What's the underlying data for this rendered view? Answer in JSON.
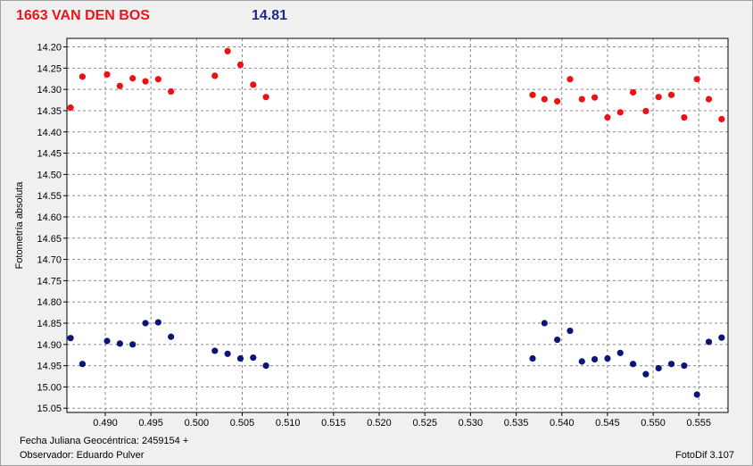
{
  "header": {
    "object": "1663 VAN DEN BOS",
    "magnitude": "14.81"
  },
  "footer": {
    "date_label": "Fecha Juliana Geocéntrica: 2459154 +",
    "observer": "Observador: Eduardo Pulver",
    "software": "FotoDif 3.107"
  },
  "colors": {
    "series_red": "#ee1111",
    "series_blue": "#0c1478",
    "title_red": "#e8141e",
    "mag_blue": "#1c2a8c"
  },
  "chart_data": {
    "type": "scatter",
    "ylabel": "Fotometría absoluta",
    "xlim": [
      0.4858,
      0.5582
    ],
    "ylim": [
      15.06,
      14.18
    ],
    "y_inverted": true,
    "grid": true,
    "x_ticks": [
      "0.490",
      "0.495",
      "0.500",
      "0.505",
      "0.510",
      "0.515",
      "0.520",
      "0.525",
      "0.530",
      "0.535",
      "0.540",
      "0.545",
      "0.550",
      "0.555"
    ],
    "y_ticks": [
      "14.20",
      "14.25",
      "14.30",
      "14.35",
      "14.40",
      "14.45",
      "14.50",
      "14.55",
      "14.60",
      "14.65",
      "14.70",
      "14.75",
      "14.80",
      "14.85",
      "14.90",
      "14.95",
      "15.00",
      "15.05"
    ],
    "series": [
      {
        "color": "#ee1111",
        "points": [
          [
            0.4862,
            14.343
          ],
          [
            0.4875,
            14.27
          ],
          [
            0.4902,
            14.265
          ],
          [
            0.4916,
            14.292
          ],
          [
            0.493,
            14.274
          ],
          [
            0.4944,
            14.281
          ],
          [
            0.4958,
            14.276
          ],
          [
            0.4972,
            14.305
          ],
          [
            0.502,
            14.268
          ],
          [
            0.5034,
            14.21
          ],
          [
            0.5048,
            14.242
          ],
          [
            0.5062,
            14.289
          ],
          [
            0.5076,
            14.318
          ],
          [
            0.5368,
            14.313
          ],
          [
            0.5381,
            14.323
          ],
          [
            0.5395,
            14.328
          ],
          [
            0.5409,
            14.276
          ],
          [
            0.5422,
            14.323
          ],
          [
            0.5436,
            14.319
          ],
          [
            0.545,
            14.366
          ],
          [
            0.5464,
            14.354
          ],
          [
            0.5478,
            14.307
          ],
          [
            0.5492,
            14.351
          ],
          [
            0.5506,
            14.318
          ],
          [
            0.552,
            14.313
          ],
          [
            0.5534,
            14.366
          ],
          [
            0.5548,
            14.276
          ],
          [
            0.5561,
            14.323
          ],
          [
            0.5575,
            14.37
          ]
        ]
      },
      {
        "color": "#0c1478",
        "points": [
          [
            0.4862,
            14.885
          ],
          [
            0.4875,
            14.946
          ],
          [
            0.4902,
            14.892
          ],
          [
            0.4916,
            14.898
          ],
          [
            0.493,
            14.9
          ],
          [
            0.4944,
            14.85
          ],
          [
            0.4958,
            14.848
          ],
          [
            0.4972,
            14.882
          ],
          [
            0.502,
            14.915
          ],
          [
            0.5034,
            14.922
          ],
          [
            0.5048,
            14.933
          ],
          [
            0.5062,
            14.931
          ],
          [
            0.5076,
            14.95
          ],
          [
            0.5368,
            14.933
          ],
          [
            0.5381,
            14.85
          ],
          [
            0.5395,
            14.889
          ],
          [
            0.5409,
            14.868
          ],
          [
            0.5422,
            14.94
          ],
          [
            0.5436,
            14.935
          ],
          [
            0.545,
            14.933
          ],
          [
            0.5464,
            14.92
          ],
          [
            0.5478,
            14.946
          ],
          [
            0.5492,
            14.97
          ],
          [
            0.5506,
            14.956
          ],
          [
            0.552,
            14.946
          ],
          [
            0.5534,
            14.95
          ],
          [
            0.5548,
            15.018
          ],
          [
            0.5561,
            14.894
          ],
          [
            0.5575,
            14.884
          ]
        ]
      }
    ]
  }
}
